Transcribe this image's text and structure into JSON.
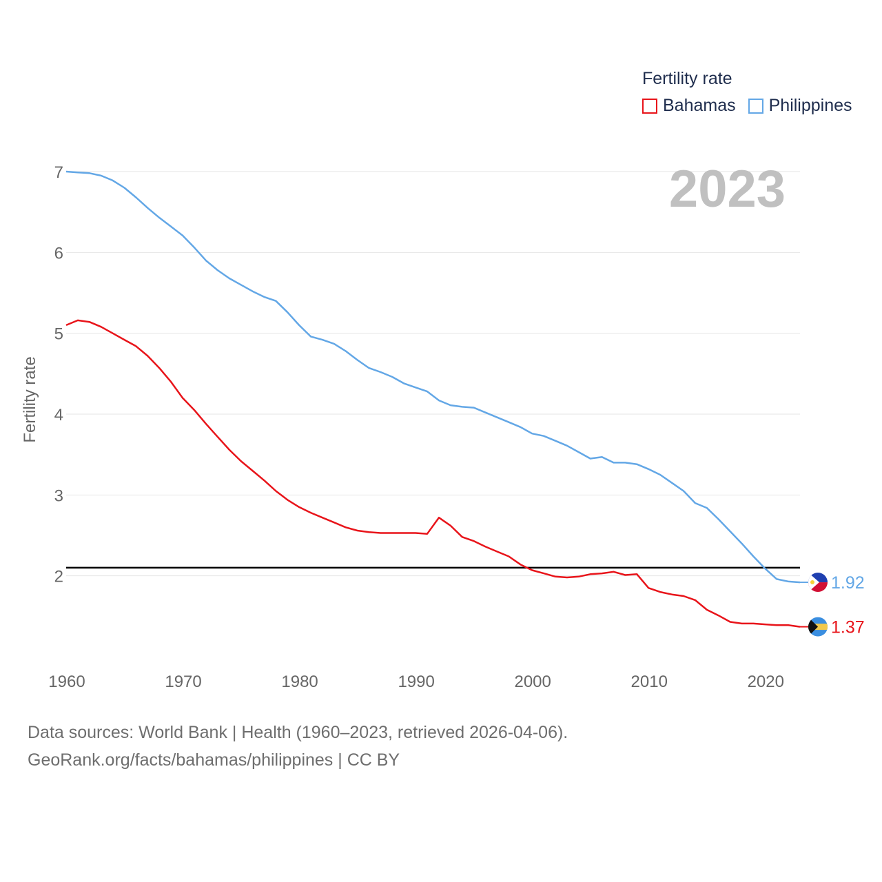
{
  "legend": {
    "title": "Fertility rate",
    "series": [
      "Bahamas",
      "Philippines"
    ]
  },
  "source": {
    "line1": "Data sources: World Bank | Health (1960–2023, retrieved 2026-04-06).",
    "line2": "GeoRank.org/facts/bahamas/philippines | CC BY"
  },
  "colors": {
    "bahamas": "#e8141a",
    "philippines": "#63a7e6",
    "reference": "#000000",
    "grid": "#e6e6e6",
    "axis_text": "#666666",
    "year": "#c0c0c0"
  },
  "chart_data": {
    "type": "line",
    "title": "2023",
    "xlabel": "",
    "ylabel": "Fertility rate",
    "xlim": [
      1960,
      2023
    ],
    "ylim": [
      1.0,
      7.0
    ],
    "x_ticks": [
      1960,
      1970,
      1980,
      1990,
      2000,
      2010,
      2020
    ],
    "y_ticks": [
      2,
      3,
      4,
      5,
      6,
      7
    ],
    "reference_line": 2.1,
    "x": [
      1960,
      1961,
      1962,
      1963,
      1964,
      1965,
      1966,
      1967,
      1968,
      1969,
      1970,
      1971,
      1972,
      1973,
      1974,
      1975,
      1976,
      1977,
      1978,
      1979,
      1980,
      1981,
      1982,
      1983,
      1984,
      1985,
      1986,
      1987,
      1988,
      1989,
      1990,
      1991,
      1992,
      1993,
      1994,
      1995,
      1996,
      1997,
      1998,
      1999,
      2000,
      2001,
      2002,
      2003,
      2004,
      2005,
      2006,
      2007,
      2008,
      2009,
      2010,
      2011,
      2012,
      2013,
      2014,
      2015,
      2016,
      2017,
      2018,
      2019,
      2020,
      2021,
      2022,
      2023
    ],
    "series": [
      {
        "name": "Bahamas",
        "color": "#e8141a",
        "end_label": "1.37",
        "values": [
          5.1,
          5.16,
          5.14,
          5.08,
          5.0,
          4.92,
          4.84,
          4.72,
          4.57,
          4.4,
          4.2,
          4.05,
          3.88,
          3.72,
          3.56,
          3.42,
          3.3,
          3.18,
          3.05,
          2.94,
          2.85,
          2.78,
          2.72,
          2.66,
          2.6,
          2.56,
          2.54,
          2.53,
          2.53,
          2.53,
          2.53,
          2.52,
          2.72,
          2.62,
          2.48,
          2.43,
          2.36,
          2.3,
          2.24,
          2.14,
          2.07,
          2.03,
          1.99,
          1.98,
          1.99,
          2.02,
          2.03,
          2.05,
          2.01,
          2.02,
          1.85,
          1.8,
          1.77,
          1.75,
          1.7,
          1.58,
          1.51,
          1.43,
          1.41,
          1.41,
          1.4,
          1.39,
          1.39,
          1.37
        ]
      },
      {
        "name": "Philippines",
        "color": "#63a7e6",
        "end_label": "1.92",
        "values": [
          7.0,
          6.99,
          6.98,
          6.95,
          6.89,
          6.8,
          6.68,
          6.55,
          6.43,
          6.32,
          6.21,
          6.06,
          5.9,
          5.78,
          5.68,
          5.6,
          5.52,
          5.45,
          5.4,
          5.26,
          5.1,
          4.96,
          4.92,
          4.87,
          4.78,
          4.67,
          4.57,
          4.52,
          4.46,
          4.38,
          4.33,
          4.28,
          4.17,
          4.11,
          4.09,
          4.08,
          4.02,
          3.96,
          3.9,
          3.84,
          3.76,
          3.73,
          3.67,
          3.61,
          3.53,
          3.45,
          3.47,
          3.4,
          3.4,
          3.38,
          3.32,
          3.25,
          3.15,
          3.05,
          2.9,
          2.84,
          2.7,
          2.55,
          2.4,
          2.24,
          2.09,
          1.96,
          1.93,
          1.92
        ]
      }
    ]
  }
}
